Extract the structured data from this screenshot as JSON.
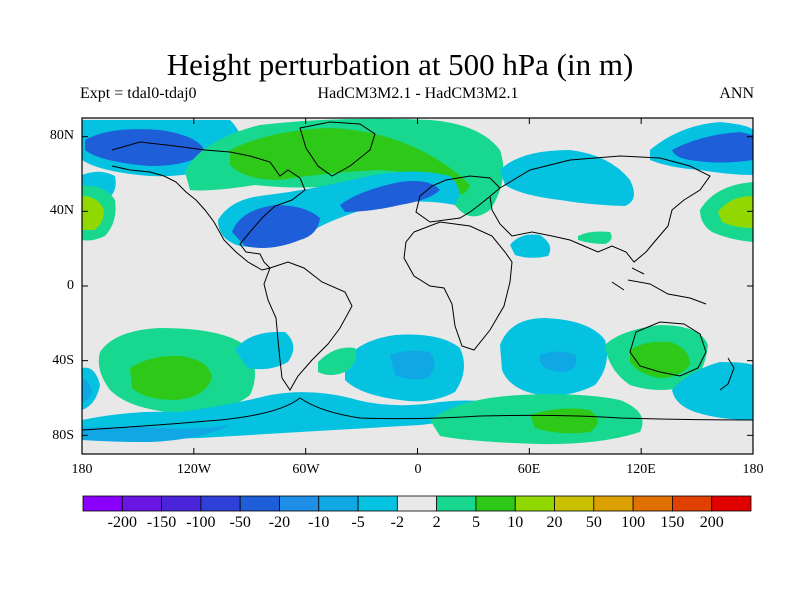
{
  "title": "Height perturbation at 500 hPa (in m)",
  "subtitle_left": "Expt = tdal0-tdaj0",
  "subtitle_center": "HadCM3M2.1 - HadCM3M2.1",
  "subtitle_right": "ANN",
  "y_axis_labels": [
    "80N",
    "40N",
    "0",
    "40S",
    "80S"
  ],
  "y_axis_values": [
    80,
    40,
    0,
    -40,
    -80
  ],
  "x_axis_labels": [
    "180",
    "120W",
    "60W",
    "0",
    "60E",
    "120E",
    "180"
  ],
  "x_axis_values": [
    -180,
    -120,
    -60,
    0,
    60,
    120,
    180
  ],
  "colorbar": {
    "labels": [
      "-200",
      "-150",
      "-100",
      "-50",
      "-20",
      "-10",
      "-5",
      "-2",
      "2",
      "5",
      "10",
      "20",
      "50",
      "100",
      "150",
      "200"
    ],
    "colors": [
      "#8a00ff",
      "#6a16e2",
      "#4a24d8",
      "#2e40d8",
      "#1e5ed8",
      "#1e8ee6",
      "#10a8e4",
      "#04c2e0",
      "#e8e8e8",
      "#18d890",
      "#2ec818",
      "#90d800",
      "#c8c000",
      "#dca000",
      "#e07000",
      "#e04000",
      "#e00000"
    ]
  },
  "palette": {
    "background_field": "#e8e8e8",
    "cyan": "#04c2e0",
    "light_blue": "#10a8e4",
    "blue": "#1e5ed8",
    "teal_green": "#18d890",
    "green": "#2ec818",
    "yellow_green": "#90d800"
  }
}
